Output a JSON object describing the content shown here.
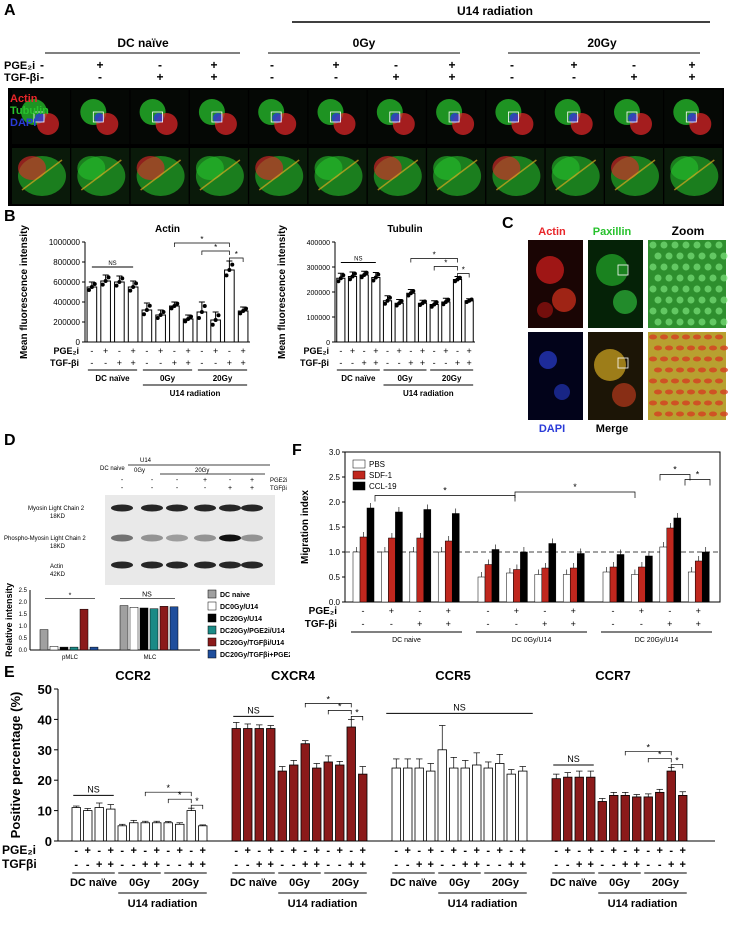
{
  "panel_labels": [
    "A",
    "B",
    "C",
    "D",
    "E",
    "F"
  ],
  "panel_a": {
    "title_u14": "U14 radiation",
    "group_dc": "DC naïve",
    "group_0": "0Gy",
    "group_20": "20Gy",
    "row_pge": "PGE₂i",
    "row_tgf": "TGF-βi",
    "pge_signs": [
      "-",
      "+",
      "-",
      "+",
      "-",
      "+",
      "-",
      "+",
      "-",
      "+",
      "-",
      "+"
    ],
    "tgf_signs": [
      "-",
      "-",
      "+",
      "+",
      "-",
      "-",
      "+",
      "+",
      "-",
      "-",
      "+",
      "+"
    ],
    "stain_actin": "Actin",
    "stain_tubulin": "Tubulin",
    "stain_dapi": "DAPI",
    "colors": {
      "actin": "#e8262a",
      "tubulin": "#27c12c",
      "dapi": "#2a3bd8"
    }
  },
  "panel_c": {
    "top": [
      "Actin",
      "Paxillin",
      "Zoom"
    ],
    "bottom": [
      "DAPI",
      "Merge"
    ]
  },
  "panel_d": {
    "header_dc": "DC naive",
    "header_u14": "U14",
    "header_0": "0Gy",
    "header_20": "20Gy",
    "header_pge": "PGE2i",
    "header_tgf": "TGFβi",
    "signs_pge": [
      "-",
      "+",
      "-",
      "+"
    ],
    "signs_tgf": [
      "-",
      "-",
      "+",
      "+"
    ],
    "blot_labels": [
      "Myosin Light Chain 2",
      "18KD",
      "Phospho-Myosin Light Chain 2",
      "18KD",
      "Actin",
      "42KD"
    ]
  },
  "common": {
    "pge": "PGE₂i",
    "tgf": "TGF-βi",
    "tgf_e": "TGFβi",
    "pge_f": "PGE₂i",
    "dc_naive": "DC naïve",
    "g0": "0Gy",
    "g20": "20Gy",
    "u14": "U14 radiation",
    "ns": "NS",
    "star": "*",
    "signs_pge8": [
      "-",
      "+",
      "-",
      "+"
    ],
    "signs_tgf8": [
      "-",
      "-",
      "+",
      "+"
    ]
  },
  "chart_data": [
    {
      "id": "B-actin",
      "type": "bar",
      "title": "Actin",
      "ylabel": "Mean fluorescence intensity",
      "ylim": [
        0,
        1000000
      ],
      "yticks": [
        "0",
        "200000",
        "400000",
        "600000",
        "800000",
        "1000000"
      ],
      "categories": [
        "DC naïve -/-",
        "DC naïve +/-",
        "DC naïve -/+",
        "DC naïve +/+",
        "0Gy -/-",
        "0Gy +/-",
        "0Gy -/+",
        "0Gy +/+",
        "20Gy -/-",
        "20Gy +/-",
        "20Gy -/+",
        "20Gy +/+"
      ],
      "values": [
        550000,
        610000,
        600000,
        550000,
        320000,
        270000,
        360000,
        230000,
        300000,
        220000,
        720000,
        310000
      ],
      "errors": [
        50000,
        60000,
        60000,
        60000,
        70000,
        50000,
        40000,
        40000,
        100000,
        80000,
        90000,
        40000
      ]
    },
    {
      "id": "B-tubulin",
      "type": "bar",
      "title": "Tubulin",
      "ylabel": "Mean fluorescence intensity",
      "ylim": [
        0,
        400000
      ],
      "yticks": [
        "0",
        "100000",
        "200000",
        "300000",
        "400000"
      ],
      "categories": [
        "DC naïve -/-",
        "DC naïve +/-",
        "DC naïve -/+",
        "DC naïve +/+",
        "0Gy -/-",
        "0Gy +/-",
        "0Gy -/+",
        "0Gy +/+",
        "20Gy -/-",
        "20Gy +/-",
        "20Gy -/+",
        "20Gy +/+"
      ],
      "values": [
        255000,
        262000,
        268000,
        258000,
        165000,
        155000,
        195000,
        155000,
        150000,
        160000,
        250000,
        165000
      ],
      "errors": [
        20000,
        18000,
        15000,
        20000,
        20000,
        15000,
        15000,
        12000,
        15000,
        15000,
        12000,
        8000
      ]
    },
    {
      "id": "D-quant",
      "type": "bar",
      "ylabel": "Relative intensity",
      "ylim": [
        0,
        2.5
      ],
      "yticks": [
        "0.0",
        "0.5",
        "1.0",
        "1.5",
        "2.0",
        "2.5"
      ],
      "categories": [
        "pMLC",
        "MLC"
      ],
      "series": [
        {
          "name": "DC naive",
          "color": "#a0a0a0",
          "values": [
            0.85,
            1.85
          ]
        },
        {
          "name": "DC0Gy/U14",
          "color": "#ffffff",
          "values": [
            0.15,
            1.78
          ]
        },
        {
          "name": "DC20Gy/U14",
          "color": "#000000",
          "values": [
            0.12,
            1.75
          ]
        },
        {
          "name": "DC20Gy/PGE2i/U14",
          "color": "#1a8a86",
          "values": [
            0.12,
            1.72
          ]
        },
        {
          "name": "DC20Gy/TGFβi/U14",
          "color": "#8b1a1a",
          "values": [
            1.7,
            1.82
          ]
        },
        {
          "name": "DC20Gy/TGFβi+PGE2i/U14",
          "color": "#1f4e9c",
          "values": [
            0.12,
            1.8
          ]
        }
      ]
    },
    {
      "id": "F-migration",
      "type": "bar",
      "ylabel": "Migration index",
      "ylim": [
        0.0,
        3.0
      ],
      "yticks": [
        "0.0",
        "0.5",
        "1.0",
        "1.5",
        "2.0",
        "2.5",
        "3.0"
      ],
      "group_labels": [
        "DC naive",
        "DC 0Gy/U14",
        "DC 20Gy/U14"
      ],
      "series": [
        {
          "name": "PBS",
          "color": "#ffffff",
          "values": [
            1.0,
            1.0,
            1.0,
            1.0,
            0.5,
            0.58,
            0.55,
            0.55,
            0.6,
            0.55,
            1.1,
            0.6
          ]
        },
        {
          "name": "SDF-1",
          "color": "#c0271e",
          "values": [
            1.3,
            1.28,
            1.28,
            1.22,
            0.75,
            0.65,
            0.68,
            0.68,
            0.7,
            0.7,
            1.48,
            0.82
          ]
        },
        {
          "name": "CCL-19",
          "color": "#000000",
          "values": [
            1.88,
            1.8,
            1.85,
            1.77,
            1.05,
            1.0,
            1.17,
            0.97,
            0.95,
            0.92,
            1.68,
            1.0
          ]
        }
      ]
    },
    {
      "id": "E-ccr",
      "type": "bar",
      "ylabel": "Positive percentage (%)",
      "ylim": [
        0,
        50
      ],
      "yticks": [
        "0",
        "10",
        "20",
        "30",
        "40",
        "50"
      ],
      "panels": [
        {
          "title": "CCR2",
          "fill": "#ffffff",
          "values": [
            11,
            10,
            11,
            10.5,
            5,
            6,
            6,
            6,
            6,
            5.5,
            10,
            5
          ],
          "errors": [
            0.5,
            0.7,
            1.5,
            1.5,
            0.5,
            0.8,
            0.5,
            0.5,
            0.4,
            0.5,
            0.8,
            0.3
          ]
        },
        {
          "title": "CXCR4",
          "fill": "#8b1a1a",
          "values": [
            37,
            37,
            37,
            37,
            23,
            25,
            32,
            24,
            26,
            25,
            37.5,
            22
          ],
          "errors": [
            2,
            1.5,
            1.2,
            1,
            1.5,
            1.5,
            1,
            1.5,
            2,
            1.2,
            2.5,
            2.5
          ]
        },
        {
          "title": "CCR5",
          "fill": "#ffffff",
          "values": [
            24,
            24,
            24,
            23,
            30,
            24,
            24,
            25,
            24,
            25.5,
            22,
            23
          ],
          "errors": [
            3,
            3,
            3,
            2.5,
            8,
            3.5,
            2.5,
            4,
            2,
            3,
            1.5,
            1.5
          ]
        },
        {
          "title": "CCR7",
          "fill": "#8b1a1a",
          "values": [
            20.5,
            21,
            21,
            21,
            13,
            15,
            15,
            14.5,
            14.5,
            16,
            23,
            15
          ],
          "errors": [
            1.5,
            1.5,
            2,
            2,
            1,
            1,
            1,
            0.8,
            1,
            1,
            1.2,
            1.2
          ]
        }
      ]
    }
  ]
}
